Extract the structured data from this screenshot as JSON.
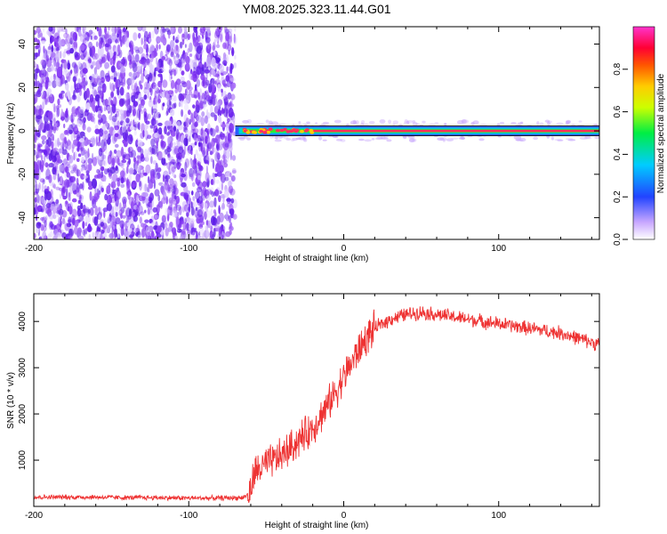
{
  "title": "YM08.2025.323.11.44.G01",
  "colors": {
    "noise": "#7a2cf0",
    "trace_high": "#ff3060",
    "trace_low": "#1e66ff",
    "snr_line": "#ee3333"
  },
  "chart_data": [
    {
      "type": "heatmap",
      "xlabel": "Height of straight line (km)",
      "ylabel": "Frequency (Hz)",
      "xlim": [
        -200,
        165
      ],
      "ylim": [
        -50,
        48
      ],
      "x_ticks": [
        "-200",
        "-100",
        "0",
        "100"
      ],
      "x_tick_values": [
        -200,
        -100,
        0,
        100
      ],
      "y_ticks": [
        "-40",
        "-20",
        "0",
        "20",
        "40"
      ],
      "y_tick_values": [
        -40,
        -20,
        0,
        20,
        40
      ],
      "grid": false,
      "noise_region_x": [
        -200,
        -70
      ],
      "signal_frequency": 0,
      "signal_start_x": -70,
      "colorbar": {
        "label": "Normalized spectral amplitude",
        "range": [
          0,
          1
        ],
        "ticks": [
          "0.0",
          "0.2",
          "0.4",
          "0.6",
          "0.8"
        ],
        "tick_values": [
          0.0,
          0.2,
          0.4,
          0.6,
          0.8
        ],
        "colormap": "rainbow-violet-to-magenta"
      }
    },
    {
      "type": "line",
      "xlabel": "Height of straight line (km)",
      "ylabel": "SNR (10 * v/v)",
      "xlim": [
        -200,
        165
      ],
      "ylim": [
        0,
        4600
      ],
      "x_ticks": [
        "-200",
        "-100",
        "0",
        "100"
      ],
      "x_tick_values": [
        -200,
        -100,
        0,
        100
      ],
      "y_ticks": [
        "1000",
        "2000",
        "3000",
        "4000"
      ],
      "y_tick_values": [
        1000,
        2000,
        3000,
        4000
      ],
      "grid": false,
      "series": [
        {
          "x": [
            -200,
            -180,
            -160,
            -140,
            -120,
            -100,
            -80,
            -65,
            -60,
            -58,
            -55,
            -50,
            -45,
            -40,
            -35,
            -30,
            -25,
            -20,
            -15,
            -10,
            -5,
            0,
            5,
            10,
            15,
            20,
            25,
            30,
            40,
            50,
            60,
            70,
            80,
            90,
            100,
            110,
            120,
            130,
            140,
            150,
            160,
            165
          ],
          "values": [
            200,
            200,
            200,
            190,
            190,
            180,
            180,
            190,
            300,
            700,
            800,
            900,
            1000,
            1100,
            1250,
            1400,
            1550,
            1700,
            1950,
            2200,
            2500,
            2800,
            3100,
            3400,
            3650,
            3850,
            3950,
            4050,
            4150,
            4200,
            4150,
            4100,
            4050,
            4000,
            3950,
            3900,
            3850,
            3800,
            3750,
            3650,
            3550,
            3500
          ]
        }
      ]
    }
  ]
}
